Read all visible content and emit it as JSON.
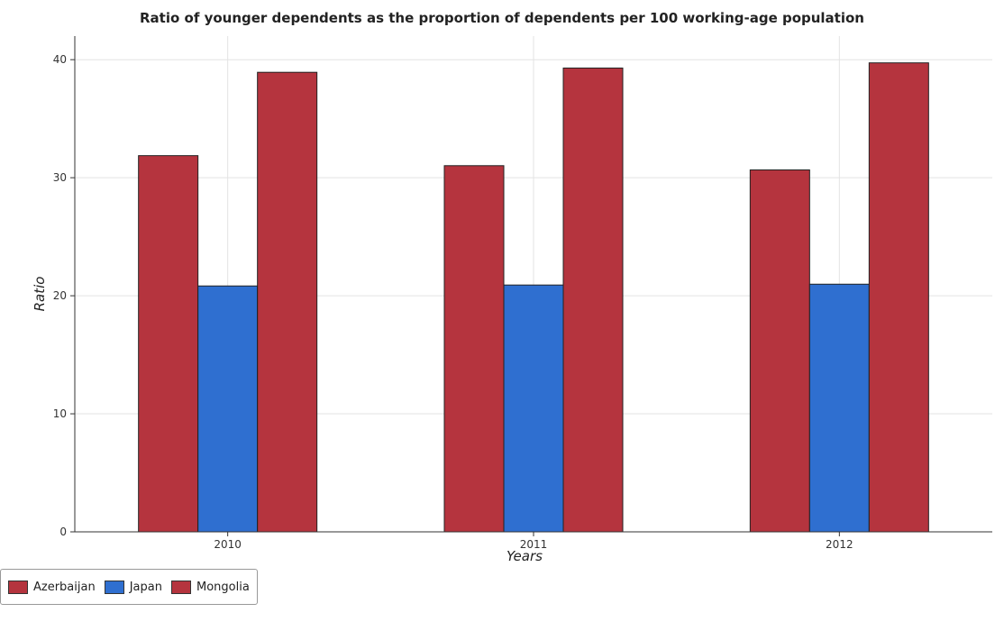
{
  "chart_data": {
    "type": "bar",
    "title": "Ratio of younger dependents as the proportion of dependents per 100 working-age population",
    "xlabel": "Years",
    "ylabel": "Ratio",
    "categories": [
      "2010",
      "2011",
      "2012"
    ],
    "series": [
      {
        "name": "Azerbaijan",
        "color": "#b5343e",
        "values": [
          31.87,
          31.02,
          30.66
        ]
      },
      {
        "name": "Japan",
        "color": "#2f6fd0",
        "values": [
          20.83,
          20.91,
          20.98
        ]
      },
      {
        "name": "Mongolia",
        "color": "#b5343e",
        "values": [
          38.93,
          39.29,
          39.73
        ]
      }
    ],
    "ylim": [
      0,
      42
    ],
    "yticks": [
      "0",
      "10",
      "20",
      "30",
      "40"
    ],
    "grid": true,
    "legend_position": "bottom-left"
  }
}
